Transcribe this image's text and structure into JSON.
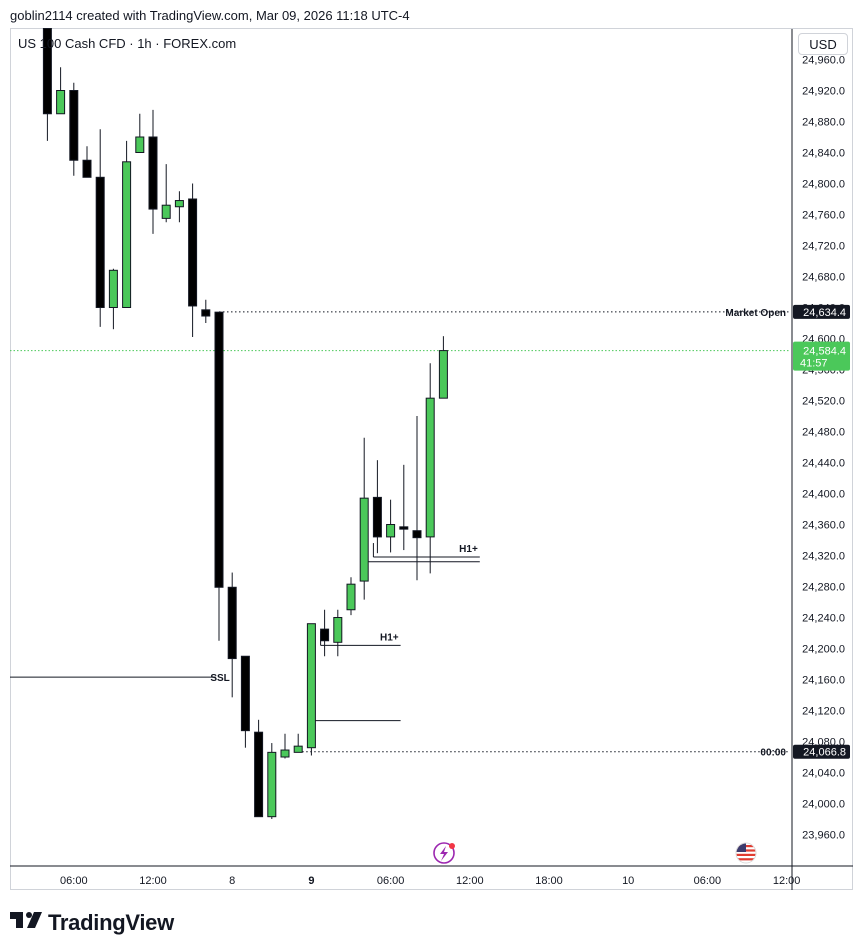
{
  "credit": "goblin2114 created with TradingView.com, Mar 09, 2026 11:18 UTC-4",
  "symbol": "US 100 Cash CFD · 1h · FOREX.com",
  "currency": "USD",
  "brand": "TradingView",
  "colors": {
    "up": "#4bc85a",
    "down": "#000000",
    "axis_text": "#131722",
    "frame": "#d0d3d9",
    "current_price_bg": "#4bc85a"
  },
  "icons": [
    "lightning-icon",
    "us-flag-icon",
    "tradingview-logo-icon"
  ],
  "chart_data": {
    "type": "candlestick",
    "y_axis": {
      "range": [
        23925,
        25000
      ],
      "ticks": [
        23960,
        24000,
        24040,
        24080,
        24120,
        24160,
        24200,
        24240,
        24280,
        24320,
        24360,
        24400,
        24440,
        24480,
        24520,
        24560,
        24600,
        24640,
        24680,
        24720,
        24760,
        24800,
        24840,
        24880,
        24920,
        24960
      ]
    },
    "x_axis": {
      "ticks": [
        {
          "label": "06:00",
          "bar": 4
        },
        {
          "label": "12:00",
          "bar": 10
        },
        {
          "label": "8",
          "bar": 16
        },
        {
          "label": "9",
          "bar": 22
        },
        {
          "label": "06:00",
          "bar": 28
        },
        {
          "label": "12:00",
          "bar": 34
        },
        {
          "label": "18:00",
          "bar": 40
        },
        {
          "label": "10",
          "bar": 46
        },
        {
          "label": "06:00",
          "bar": 52
        },
        {
          "label": "12:00",
          "bar": 58
        }
      ]
    },
    "candles": [
      {
        "bar": 2,
        "o": 25000,
        "h": 25000,
        "c": 24890,
        "l": 24855
      },
      {
        "bar": 3,
        "o": 24890,
        "h": 24950,
        "c": 24920,
        "l": 24890
      },
      {
        "bar": 4,
        "o": 24920,
        "h": 24930,
        "c": 24830,
        "l": 24810
      },
      {
        "bar": 5,
        "o": 24830,
        "h": 24848,
        "c": 24808,
        "l": 24808
      },
      {
        "bar": 6,
        "o": 24808,
        "h": 24870,
        "c": 24640,
        "l": 24615
      },
      {
        "bar": 7,
        "o": 24640,
        "h": 24690,
        "c": 24688,
        "l": 24612
      },
      {
        "bar": 8,
        "o": 24640,
        "h": 24855,
        "c": 24828,
        "l": 24640
      },
      {
        "bar": 9,
        "o": 24840,
        "h": 24890,
        "c": 24860,
        "l": 24845
      },
      {
        "bar": 10,
        "o": 24860,
        "h": 24895,
        "c": 24767,
        "l": 24735
      },
      {
        "bar": 11,
        "o": 24755,
        "h": 24825,
        "c": 24772,
        "l": 24750
      },
      {
        "bar": 12,
        "o": 24770,
        "h": 24790,
        "c": 24778,
        "l": 24750
      },
      {
        "bar": 13,
        "o": 24780,
        "h": 24800,
        "c": 24642,
        "l": 24602
      },
      {
        "bar": 14,
        "o": 24637,
        "h": 24650,
        "c": 24629,
        "l": 24620
      },
      {
        "bar": 15,
        "o": 24634,
        "h": 24634,
        "c": 24279,
        "l": 24210
      },
      {
        "bar": 16,
        "o": 24279,
        "h": 24298,
        "c": 24187,
        "l": 24137
      },
      {
        "bar": 17,
        "o": 24190,
        "h": 24190,
        "c": 24094,
        "l": 24072
      },
      {
        "bar": 18,
        "o": 24092,
        "h": 24108,
        "c": 23983,
        "l": 23983
      },
      {
        "bar": 19,
        "o": 23983,
        "h": 24078,
        "c": 24066,
        "l": 23980
      },
      {
        "bar": 20,
        "o": 24060,
        "h": 24090,
        "c": 24069,
        "l": 24058
      },
      {
        "bar": 21,
        "o": 24066,
        "h": 24090,
        "c": 24074,
        "l": 24066
      },
      {
        "bar": 22,
        "o": 24072,
        "h": 24232,
        "c": 24232,
        "l": 24062
      },
      {
        "bar": 23,
        "o": 24225,
        "h": 24250,
        "c": 24210,
        "l": 24190
      },
      {
        "bar": 24,
        "o": 24208,
        "h": 24250,
        "c": 24240,
        "l": 24190
      },
      {
        "bar": 25,
        "o": 24250,
        "h": 24292,
        "c": 24283,
        "l": 24243
      },
      {
        "bar": 26,
        "o": 24287,
        "h": 24472,
        "c": 24394,
        "l": 24263
      },
      {
        "bar": 27,
        "o": 24395,
        "h": 24443,
        "c": 24344,
        "l": 24323
      },
      {
        "bar": 28,
        "o": 24344,
        "h": 24392,
        "c": 24360,
        "l": 24324
      },
      {
        "bar": 29,
        "o": 24357,
        "h": 24437,
        "c": 24354,
        "l": 24327
      },
      {
        "bar": 30,
        "o": 24352,
        "h": 24500,
        "c": 24343,
        "l": 24288
      },
      {
        "bar": 31,
        "o": 24344,
        "h": 24568,
        "c": 24523,
        "l": 24297
      },
      {
        "bar": 32,
        "o": 24523,
        "h": 24603,
        "c": 24584.4,
        "l": 24523
      }
    ],
    "horizontal_lines": [
      {
        "label": "Market Open",
        "price": 24634.4,
        "price_label": "24,634.4",
        "style": "dotted",
        "from_bar": 15
      },
      {
        "label": "00:00",
        "price": 24066.8,
        "price_label": "24,066.8",
        "style": "dotted",
        "from_bar": 21
      },
      {
        "label": "SSL",
        "price": 24163,
        "style": "solid",
        "from_bar": -1,
        "to_bar": 14
      }
    ],
    "annotations": [
      {
        "label": "H1+",
        "price": 24204,
        "from_bar": 23,
        "to_bar": 28
      },
      {
        "label": "H1+",
        "price": 24318,
        "from_bar": 27,
        "to_bar": 34
      }
    ],
    "extra_lines": [
      {
        "price": 24312,
        "from_bar": 26,
        "to_bar": 34
      },
      {
        "price": 24107,
        "from_bar": 22,
        "to_bar": 28
      }
    ],
    "current_price": {
      "price": 24584.4,
      "price_label": "24,584.4",
      "countdown": "41:57"
    }
  }
}
